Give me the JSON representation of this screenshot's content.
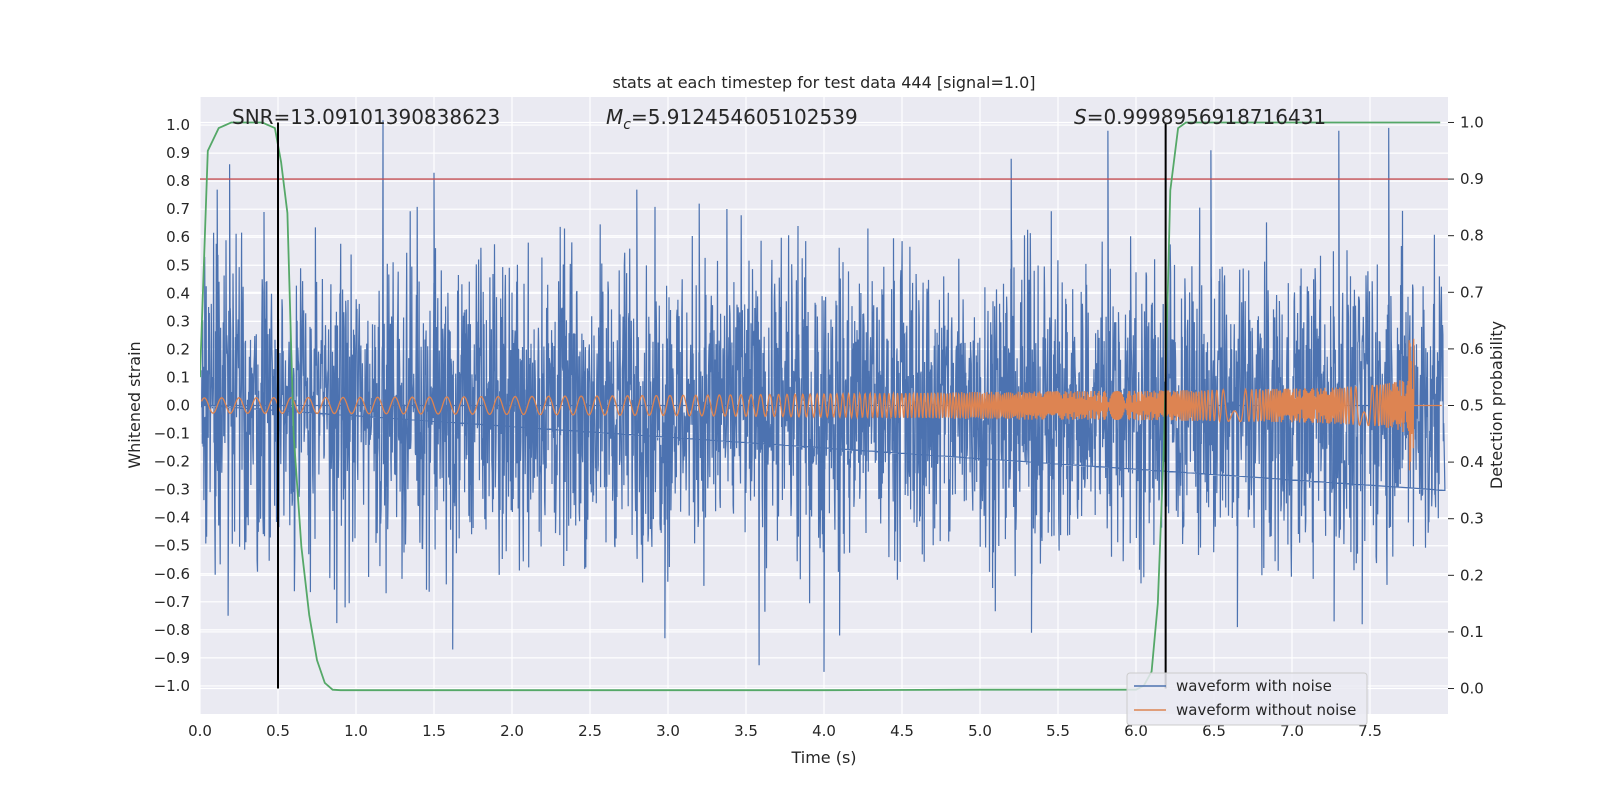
{
  "chart_data": {
    "type": "line",
    "title": "stats at each timestep for test data 444 [signal=1.0]",
    "xlabel": "Time (s)",
    "ylabel_left": "Whitened strain",
    "ylabel_right": "Detection probability",
    "xlim": [
      0.0,
      8.0
    ],
    "ylim_left": [
      -1.1,
      1.1
    ],
    "ylim_right": [
      -0.045,
      1.045
    ],
    "x_ticks": [
      "0.0",
      "0.5",
      "1.0",
      "1.5",
      "2.0",
      "2.5",
      "3.0",
      "3.5",
      "4.0",
      "4.5",
      "5.0",
      "5.5",
      "6.0",
      "6.5",
      "7.0",
      "7.5"
    ],
    "y_left_ticks": [
      "1.0",
      "0.9",
      "0.8",
      "0.7",
      "0.6",
      "0.5",
      "0.4",
      "0.3",
      "0.2",
      "0.1",
      "0.0",
      "−0.1",
      "−0.2",
      "−0.3",
      "−0.4",
      "−0.5",
      "−0.6",
      "−0.7",
      "−0.8",
      "−0.9",
      "−1.0"
    ],
    "y_right_ticks": [
      "0.0",
      "0.1",
      "0.2",
      "0.3",
      "0.4",
      "0.5",
      "0.6",
      "0.7",
      "0.8",
      "0.9",
      "1.0"
    ],
    "annotations": {
      "snr": "SNR=13.09101390838623",
      "mc_symbol": "M",
      "mc_sub": "c",
      "mc_value": "=5.912454605102539",
      "s_symbol": "S",
      "s_value": "=0.9998956918716431"
    },
    "threshold_right": 0.9,
    "vertical_lines_x": [
      0.5,
      6.19
    ],
    "series": [
      {
        "name": "waveform with noise",
        "color": "#4c72b0",
        "noise_band_typical": 0.35,
        "spike_points": [
          [
            0.03,
            0.53
          ],
          [
            0.11,
            0.77
          ],
          [
            0.19,
            0.86
          ],
          [
            0.41,
            0.69
          ],
          [
            1.5,
            0.83
          ],
          [
            2.8,
            0.77
          ],
          [
            3.2,
            0.72
          ],
          [
            4.0,
            -0.95
          ],
          [
            5.2,
            0.88
          ],
          [
            5.82,
            0.98
          ],
          [
            6.48,
            0.91
          ],
          [
            7.3,
            0.98
          ],
          [
            7.62,
            0.99
          ],
          [
            1.62,
            -0.87
          ],
          [
            2.98,
            -0.83
          ],
          [
            4.1,
            -0.82
          ],
          [
            5.33,
            -0.81
          ],
          [
            6.65,
            -0.79
          ],
          [
            7.27,
            -0.77
          ],
          [
            7.45,
            -0.78
          ],
          [
            0.18,
            -0.75
          ],
          [
            0.93,
            -0.72
          ]
        ]
      },
      {
        "name": "waveform without noise",
        "color": "#dd8452",
        "chirp_amplitude_start": 0.02,
        "chirp_amplitude_peak": 0.31,
        "chirp_merger_time": 7.76,
        "chirp_end_time": 7.78
      },
      {
        "name": "detection probability",
        "color": "#55a868",
        "axis": "right",
        "x": [
          0.0,
          0.05,
          0.12,
          0.2,
          0.3,
          0.4,
          0.48,
          0.52,
          0.56,
          0.6,
          0.65,
          0.7,
          0.75,
          0.8,
          0.85,
          0.9,
          1.0,
          2.0,
          3.0,
          4.0,
          5.0,
          6.0,
          6.05,
          6.1,
          6.14,
          6.18,
          6.22,
          6.27,
          6.32,
          6.4,
          6.6,
          7.0,
          7.5,
          7.95
        ],
        "values": [
          0.55,
          0.95,
          0.99,
          1.0,
          1.0,
          1.0,
          0.99,
          0.93,
          0.84,
          0.45,
          0.25,
          0.13,
          0.05,
          0.01,
          -0.002,
          -0.003,
          -0.003,
          -0.003,
          -0.003,
          -0.003,
          -0.002,
          -0.002,
          0.005,
          0.03,
          0.15,
          0.44,
          0.88,
          0.99,
          1.0,
          1.0,
          1.0,
          1.0,
          1.0,
          1.0
        ]
      }
    ],
    "legend": {
      "placement": "lower-right",
      "entries": [
        "waveform with noise",
        "waveform without noise"
      ]
    },
    "colors": {
      "background": "#eaeaf2",
      "grid": "#ffffff",
      "threshold": "#c44e52",
      "vline": "#000000"
    }
  }
}
